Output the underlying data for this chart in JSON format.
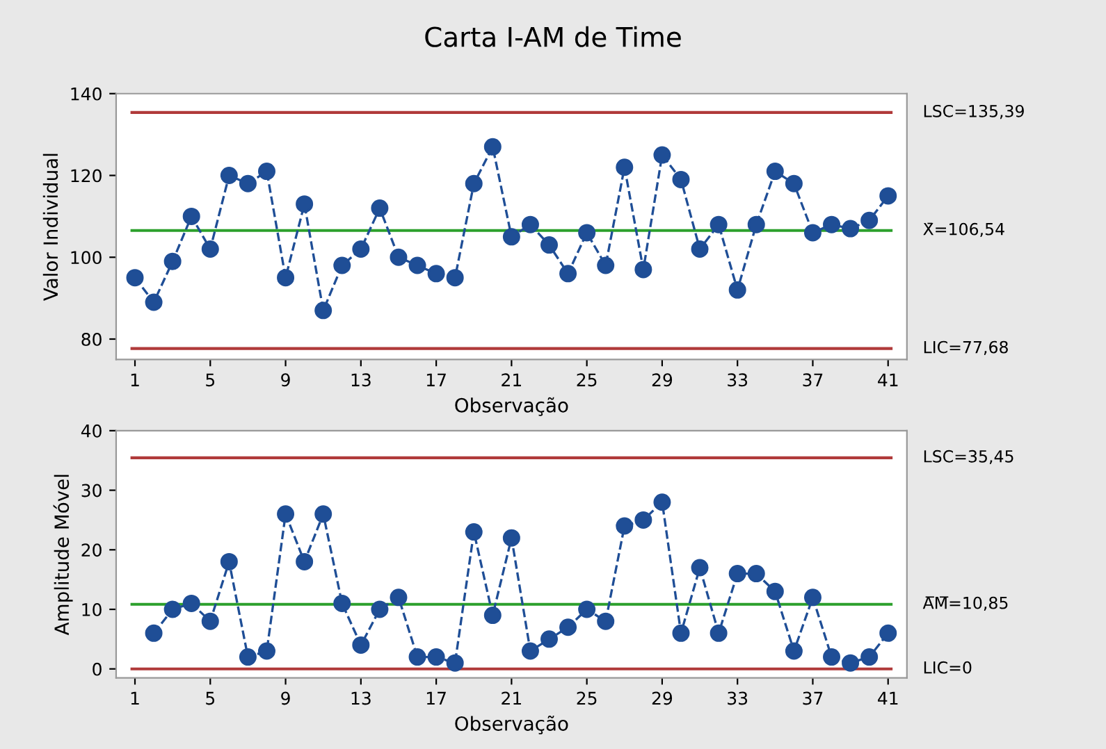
{
  "chart_data": [
    {
      "type": "line",
      "title": "Carta I-AM de Time",
      "xlabel": "Observação",
      "ylabel": "Valor Individual",
      "x": [
        1,
        2,
        3,
        4,
        5,
        6,
        7,
        8,
        9,
        10,
        11,
        12,
        13,
        14,
        15,
        16,
        17,
        18,
        19,
        20,
        21,
        22,
        23,
        24,
        25,
        26,
        27,
        28,
        29,
        30,
        31,
        32,
        33,
        34,
        35,
        36,
        37,
        38,
        39,
        40,
        41
      ],
      "series": [
        {
          "color": "#1f4e96",
          "values": [
            95,
            89,
            99,
            110,
            102,
            120,
            118,
            121,
            95,
            113,
            87,
            98,
            102,
            112,
            100,
            98,
            96,
            95,
            118,
            127,
            105,
            108,
            103,
            96,
            106,
            98,
            122,
            97,
            125,
            119,
            102,
            108,
            92,
            108,
            121,
            118,
            106,
            108,
            107,
            109,
            115
          ]
        }
      ],
      "xlim": [
        0,
        42
      ],
      "xticks": [
        1,
        5,
        9,
        13,
        17,
        21,
        25,
        29,
        33,
        37,
        41
      ],
      "ylim": [
        75,
        140
      ],
      "yticks": [
        80,
        100,
        120,
        140
      ],
      "marker": "circle",
      "line_style": "dashed",
      "grid": false,
      "ref_lines": [
        {
          "axis": "y",
          "value": 135.39,
          "label": "LSC=135,39",
          "color": "#b03a3a"
        },
        {
          "axis": "y",
          "value": 106.54,
          "label": "X̄=106,54",
          "color": "#2ca02c"
        },
        {
          "axis": "y",
          "value": 77.68,
          "label": "LIC=77,68",
          "color": "#b03a3a"
        }
      ]
    },
    {
      "type": "line",
      "xlabel": "Observação",
      "ylabel": "Amplitude Móvel",
      "x": [
        2,
        3,
        4,
        5,
        6,
        7,
        8,
        9,
        10,
        11,
        12,
        13,
        14,
        15,
        16,
        17,
        18,
        19,
        20,
        21,
        22,
        23,
        24,
        25,
        26,
        27,
        28,
        29,
        30,
        31,
        32,
        33,
        34,
        35,
        36,
        37,
        38,
        39,
        40,
        41
      ],
      "series": [
        {
          "color": "#1f4e96",
          "values": [
            6,
            10,
            11,
            8,
            18,
            2,
            3,
            26,
            18,
            26,
            11,
            4,
            10,
            12,
            2,
            2,
            1,
            23,
            9,
            22,
            3,
            5,
            7,
            10,
            8,
            24,
            25,
            28,
            6,
            17,
            6,
            16,
            16,
            13,
            3,
            12,
            2,
            1,
            2,
            6
          ]
        }
      ],
      "xlim": [
        0,
        42
      ],
      "xticks": [
        1,
        5,
        9,
        13,
        17,
        21,
        25,
        29,
        33,
        37,
        41
      ],
      "ylim": [
        -1.5,
        40
      ],
      "yticks": [
        0,
        10,
        20,
        30,
        40
      ],
      "marker": "circle",
      "line_style": "dashed",
      "grid": false,
      "ref_lines": [
        {
          "axis": "y",
          "value": 35.45,
          "label": "LSC=35,45",
          "color": "#b03a3a"
        },
        {
          "axis": "y",
          "value": 10.85,
          "label": "A̅M̅=10,85",
          "color": "#2ca02c"
        },
        {
          "axis": "y",
          "value": 0,
          "label": "LIC=0",
          "color": "#b03a3a"
        }
      ]
    }
  ]
}
